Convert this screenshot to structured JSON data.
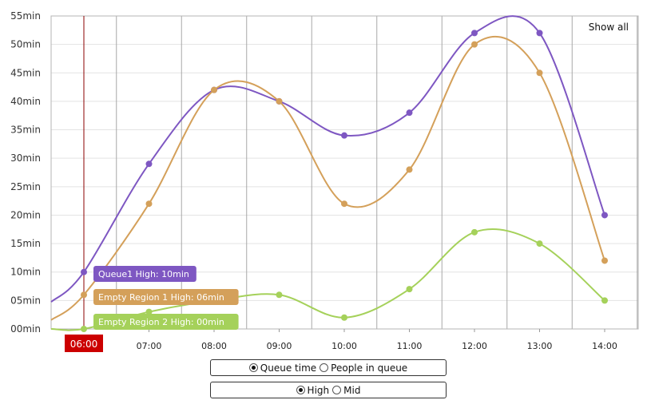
{
  "chart_data": {
    "type": "line",
    "show_all_label": "Show all",
    "ylim": [
      0,
      55
    ],
    "y_ticks": [
      "00min",
      "05min",
      "10min",
      "15min",
      "20min",
      "25min",
      "30min",
      "35min",
      "40min",
      "45min",
      "50min",
      "55min"
    ],
    "categories": [
      "06:00",
      "07:00",
      "08:00",
      "09:00",
      "10:00",
      "11:00",
      "12:00",
      "13:00",
      "14:00"
    ],
    "selected_time": "06:00",
    "series": [
      {
        "color": "#7e57c2",
        "values": [
          10,
          29,
          42,
          40,
          34,
          38,
          52,
          52,
          20
        ],
        "tooltip": "Queue1 High: 10min"
      },
      {
        "color": "#d4a05a",
        "values": [
          6,
          22,
          42,
          40,
          22,
          28,
          50,
          45,
          12
        ],
        "tooltip": "Empty Region 1 High: 06min"
      },
      {
        "color": "#a5d15a",
        "values": [
          0,
          3,
          5,
          6,
          2,
          7,
          17,
          15,
          5
        ],
        "tooltip": "Empty Region 2 High: 00min"
      }
    ],
    "grid": true
  },
  "controls": {
    "metric": {
      "options": [
        "Queue time",
        "People in queue"
      ],
      "selected": 0
    },
    "level": {
      "options": [
        "High",
        "Mid"
      ],
      "selected": 0
    }
  }
}
